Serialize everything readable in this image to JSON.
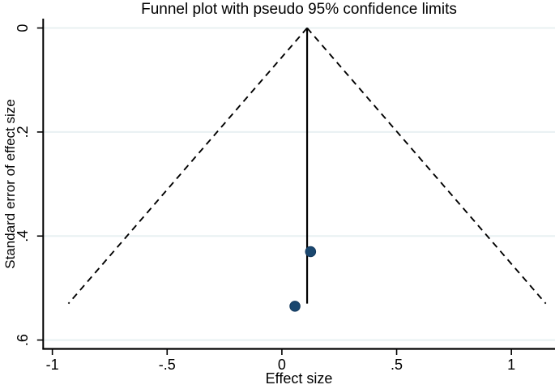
{
  "chart_data": {
    "type": "scatter",
    "subtype": "funnel-plot",
    "title": "Funnel plot with pseudo 95% confidence limits",
    "xlabel": "Effect size",
    "ylabel": "Standard error of effect size",
    "xlim": [
      -1.04,
      1.19
    ],
    "ylim": [
      -0.018,
      0.617
    ],
    "y_axis_inverted": true,
    "grid": "horizontal",
    "x_ticks": {
      "values": [
        -1,
        -0.5,
        0,
        0.5,
        1
      ],
      "labels": [
        "-1",
        "-.5",
        "0",
        ".5",
        "1"
      ]
    },
    "y_ticks": {
      "values": [
        0,
        0.2,
        0.4,
        0.6
      ],
      "labels": [
        "0",
        ".2",
        ".4",
        ".6"
      ]
    },
    "pooled_effect": 0.11,
    "confidence_level": "95%",
    "funnel": {
      "apex": {
        "effect": 0.11,
        "se": 0
      },
      "max_se": 0.53,
      "left_end": {
        "effect": -0.93,
        "se": 0.53
      },
      "right_end": {
        "effect": 1.15,
        "se": 0.53
      },
      "line_style": "dashed"
    },
    "center_line": {
      "effect": 0.11,
      "se_from": 0,
      "se_to": 0.53
    },
    "points": [
      {
        "effect": 0.125,
        "se": 0.43
      },
      {
        "effect": 0.057,
        "se": 0.535
      }
    ],
    "colors": {
      "marker": "#1a476f",
      "marker_edge": "#13385c",
      "grid": "#e8f0f2",
      "axis": "#000000",
      "funnel_line": "#000000",
      "center_line": "#000000",
      "text": "#000000",
      "background": "#ffffff"
    }
  }
}
